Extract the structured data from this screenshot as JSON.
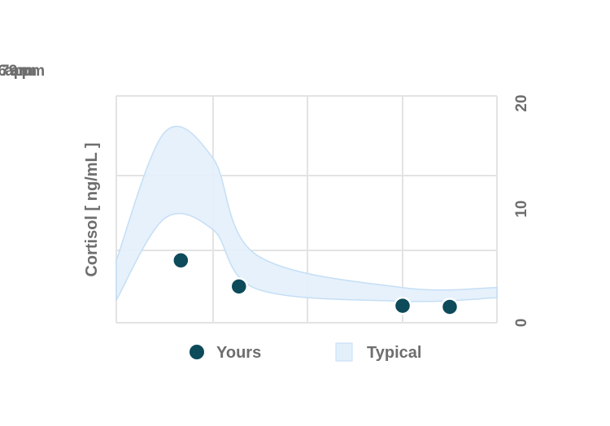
{
  "chart_data": {
    "type": "scatter",
    "title": "",
    "xlabel": "",
    "ylabel": "Cortisol [ ng/mL ]",
    "x_ticks": [
      "6 am",
      "8 am",
      "7 pm",
      "9 pm"
    ],
    "y_ticks": [
      "0",
      "10",
      "20"
    ],
    "ylim": [
      0,
      20
    ],
    "grid": true,
    "legend": {
      "position": "bottom",
      "yours_label": "Yours",
      "typical_label": "Typical"
    },
    "colors": {
      "yours": "#0d4a5a",
      "typical_fill": "#e3f0fc",
      "typical_line": "#c5def5",
      "grid": "#e3e3e3",
      "text": "#6e6e6e"
    },
    "series": [
      {
        "name": "Yours",
        "kind": "points",
        "points": [
          {
            "x": "7:20 am",
            "y": 5.5
          },
          {
            "x": "9:30 am",
            "y": 3.2
          },
          {
            "x": "7:00 pm",
            "y": 1.5
          },
          {
            "x": "8:00 pm",
            "y": 1.4
          }
        ]
      },
      {
        "name": "Typical",
        "kind": "band",
        "upper": [
          {
            "x": "6:00 am",
            "y": 5.5
          },
          {
            "x": "7:00 am",
            "y": 16.8
          },
          {
            "x": "8:00 am",
            "y": 14.5
          },
          {
            "x": "10:30 am",
            "y": 6.0
          },
          {
            "x": "7:00 pm",
            "y": 3.1
          },
          {
            "x": "9:00 pm",
            "y": 3.1
          }
        ],
        "lower": [
          {
            "x": "6:00 am",
            "y": 2.0
          },
          {
            "x": "7:00 am",
            "y": 9.2
          },
          {
            "x": "8:00 am",
            "y": 8.2
          },
          {
            "x": "10:30 am",
            "y": 3.0
          },
          {
            "x": "7:00 pm",
            "y": 1.9
          },
          {
            "x": "9:00 pm",
            "y": 2.2
          }
        ]
      }
    ]
  }
}
